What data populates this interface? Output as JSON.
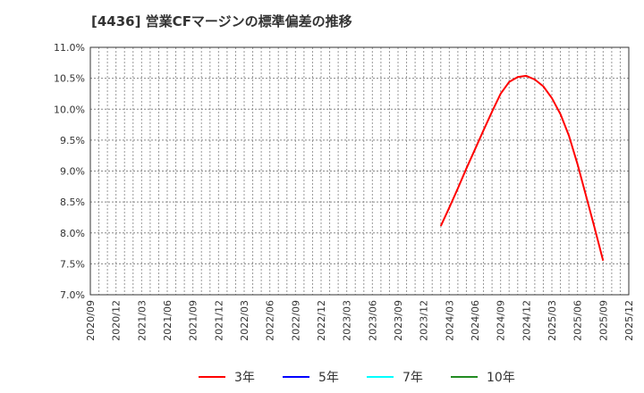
{
  "title": "[4436]  営業CFマージンの標準偏差の推移",
  "chart_data": {
    "type": "line",
    "title": "[4436]  営業CFマージンの標準偏差の推移",
    "xlabel": "",
    "ylabel": "",
    "ylim": [
      7.0,
      11.0
    ],
    "y_ticks": [
      "7.0%",
      "7.5%",
      "8.0%",
      "8.5%",
      "9.0%",
      "9.5%",
      "10.0%",
      "10.5%",
      "11.0%"
    ],
    "x_ticks": [
      "2020/09",
      "2020/12",
      "2021/03",
      "2021/06",
      "2021/09",
      "2021/12",
      "2022/03",
      "2022/06",
      "2022/09",
      "2022/12",
      "2023/03",
      "2023/06",
      "2023/09",
      "2023/12",
      "2024/03",
      "2024/06",
      "2024/09",
      "2024/12",
      "2025/03",
      "2025/06",
      "2025/09",
      "2025/12"
    ],
    "x_range": [
      "2020/09",
      "2025/12"
    ],
    "grid": true,
    "legend_position": "bottom",
    "series": [
      {
        "name": "3年",
        "color": "#ff0000",
        "x": [
          "2024/02",
          "2024/03",
          "2024/04",
          "2024/05",
          "2024/06",
          "2024/07",
          "2024/08",
          "2024/09",
          "2024/10",
          "2024/11",
          "2024/12",
          "2025/01",
          "2025/02",
          "2025/03",
          "2025/04",
          "2025/05",
          "2025/06",
          "2025/07",
          "2025/08",
          "2025/09"
        ],
        "values": [
          8.11,
          8.41,
          8.72,
          9.04,
          9.35,
          9.66,
          9.96,
          10.25,
          10.44,
          10.52,
          10.54,
          10.48,
          10.37,
          10.18,
          9.92,
          9.57,
          9.11,
          8.6,
          8.08,
          7.55
        ]
      },
      {
        "name": "5年",
        "color": "#0000ff",
        "x": [],
        "values": []
      },
      {
        "name": "7年",
        "color": "#00ffff",
        "x": [],
        "values": []
      },
      {
        "name": "10年",
        "color": "#228b22",
        "x": [],
        "values": []
      }
    ]
  },
  "legend": [
    {
      "label": "3年",
      "color": "#ff0000"
    },
    {
      "label": "5年",
      "color": "#0000ff"
    },
    {
      "label": "7年",
      "color": "#00ffff"
    },
    {
      "label": "10年",
      "color": "#228b22"
    }
  ]
}
